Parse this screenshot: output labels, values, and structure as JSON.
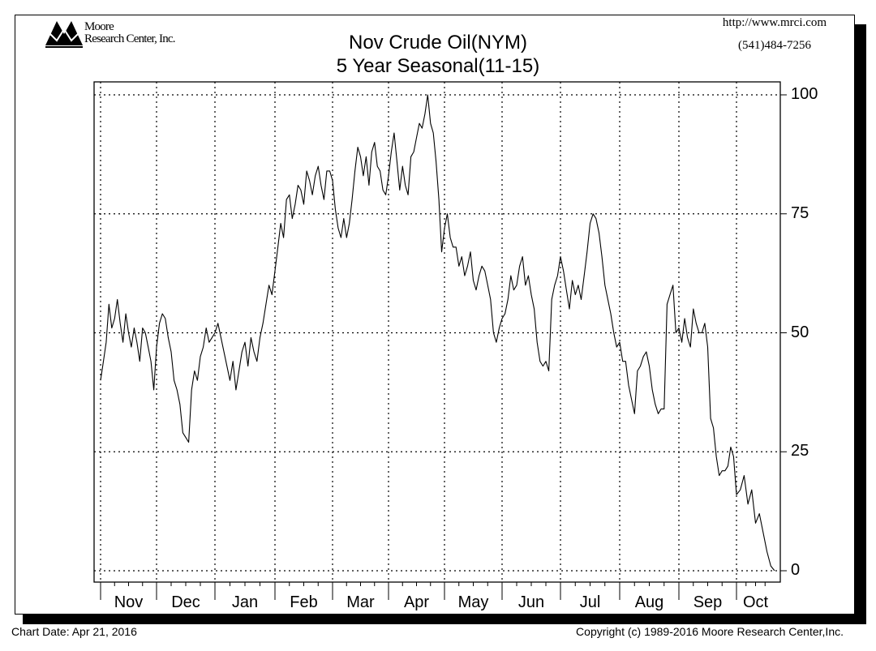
{
  "header": {
    "company_line1": "Moore",
    "company_line2": "Research Center, Inc.",
    "title_line1": "Nov Crude Oil(NYM)",
    "title_line2": "5 Year Seasonal(11-15)",
    "url": "http://www.mrci.com",
    "phone": "(541)484-7256"
  },
  "footer": {
    "chart_date": "Chart Date: Apr 21, 2016",
    "copyright": "Copyright (c) 1989-2016 Moore Research Center,Inc."
  },
  "y_ticks": [
    "100",
    "75",
    "50",
    "25",
    "0"
  ],
  "months": [
    "Nov",
    "Dec",
    "Jan",
    "Feb",
    "Mar",
    "Apr",
    "May",
    "Jun",
    "Jul",
    "Aug",
    "Sep",
    "Oct"
  ],
  "chart_data": {
    "type": "line",
    "title": "Nov Crude Oil(NYM) 5 Year Seasonal(11-15)",
    "xlabel": "",
    "ylabel": "",
    "ylim": [
      0,
      100
    ],
    "y_ticks": [
      0,
      25,
      50,
      75,
      100
    ],
    "grid": true,
    "legend": null,
    "categories": [
      "Nov",
      "Dec",
      "Jan",
      "Feb",
      "Mar",
      "Apr",
      "May",
      "Jun",
      "Jul",
      "Aug",
      "Sep",
      "Oct"
    ],
    "series": [
      {
        "name": "5 Year Seasonal Index",
        "x_month_pos": [
          0.0,
          0.05,
          0.1,
          0.15,
          0.2,
          0.25,
          0.3,
          0.35,
          0.4,
          0.45,
          0.5,
          0.55,
          0.6,
          0.65,
          0.7,
          0.75,
          0.8,
          0.85,
          0.9,
          0.95,
          1.0,
          1.05,
          1.1,
          1.15,
          1.2,
          1.25,
          1.3,
          1.35,
          1.4,
          1.45,
          1.5,
          1.55,
          1.6,
          1.65,
          1.7,
          1.75,
          1.8,
          1.85,
          1.9,
          1.95,
          2.0,
          2.05,
          2.1,
          2.15,
          2.2,
          2.25,
          2.3,
          2.35,
          2.4,
          2.45,
          2.5,
          2.55,
          2.6,
          2.65,
          2.7,
          2.75,
          2.8,
          2.85,
          2.9,
          2.95,
          3.0,
          3.05,
          3.1,
          3.15,
          3.2,
          3.25,
          3.3,
          3.35,
          3.4,
          3.45,
          3.5,
          3.55,
          3.6,
          3.65,
          3.7,
          3.75,
          3.8,
          3.85,
          3.9,
          3.95,
          4.0,
          4.05,
          4.1,
          4.15,
          4.2,
          4.25,
          4.3,
          4.35,
          4.4,
          4.45,
          4.5,
          4.55,
          4.6,
          4.65,
          4.7,
          4.75,
          4.8,
          4.85,
          4.9,
          4.95,
          5.0,
          5.05,
          5.1,
          5.15,
          5.2,
          5.25,
          5.3,
          5.35,
          5.4,
          5.45,
          5.5,
          5.55,
          5.6,
          5.65,
          5.7,
          5.75,
          5.8,
          5.85,
          5.9,
          5.95,
          6.0,
          6.05,
          6.1,
          6.15,
          6.2,
          6.25,
          6.3,
          6.35,
          6.4,
          6.45,
          6.5,
          6.55,
          6.6,
          6.65,
          6.7,
          6.75,
          6.8,
          6.85,
          6.9,
          6.95,
          7.0,
          7.05,
          7.1,
          7.15,
          7.2,
          7.25,
          7.3,
          7.35,
          7.4,
          7.45,
          7.5,
          7.55,
          7.6,
          7.65,
          7.7,
          7.75,
          7.8,
          7.85,
          7.9,
          7.95,
          8.0,
          8.05,
          8.1,
          8.15,
          8.2,
          8.25,
          8.3,
          8.35,
          8.4,
          8.45,
          8.5,
          8.55,
          8.6,
          8.65,
          8.7,
          8.75,
          8.8,
          8.85,
          8.9,
          8.95,
          9.0,
          9.05,
          9.1,
          9.15,
          9.2,
          9.25,
          9.3,
          9.35,
          9.4,
          9.45,
          9.5,
          9.55,
          9.6,
          9.65,
          9.7,
          9.75,
          9.8,
          9.85,
          9.9,
          9.95,
          10.0,
          10.05,
          10.1,
          10.15,
          10.2,
          10.25,
          10.3,
          10.35,
          10.4,
          10.45,
          10.5,
          10.55,
          10.6,
          10.65,
          10.7,
          10.75,
          10.8,
          10.85,
          10.9,
          10.95,
          11.0,
          11.1,
          11.2,
          11.3,
          11.4,
          11.5,
          11.6,
          11.7,
          11.8,
          11.9,
          12.0
        ],
        "values": [
          40,
          44,
          48,
          56,
          51,
          53,
          57,
          52,
          48,
          54,
          50,
          47,
          51,
          48,
          44,
          51,
          50,
          47,
          44,
          38,
          47,
          52,
          54,
          53,
          49,
          46,
          40,
          38,
          35,
          29,
          28,
          27,
          38,
          42,
          40,
          45,
          47,
          51,
          48,
          49,
          50,
          52,
          49,
          46,
          43,
          40,
          44,
          38,
          42,
          46,
          48,
          43,
          49,
          46,
          44,
          49,
          52,
          56,
          60,
          58,
          63,
          68,
          73,
          70,
          78,
          79,
          74,
          77,
          81,
          80,
          77,
          84,
          82,
          79,
          83,
          85,
          81,
          78,
          84,
          84,
          82,
          76,
          72,
          70,
          74,
          70,
          73,
          78,
          84,
          89,
          87,
          83,
          87,
          81,
          88,
          90,
          85,
          84,
          80,
          79,
          83,
          88,
          92,
          86,
          80,
          85,
          81,
          79,
          87,
          88,
          91,
          94,
          93,
          96,
          100,
          94,
          92,
          86,
          78,
          67,
          72,
          75,
          70,
          68,
          68,
          64,
          66,
          62,
          64,
          67,
          61,
          59,
          62,
          64,
          63,
          60,
          57,
          50,
          48,
          51,
          53,
          54,
          57,
          62,
          59,
          60,
          64,
          66,
          60,
          62,
          58,
          55,
          48,
          44,
          43,
          44,
          42,
          57,
          60,
          62,
          66,
          63,
          59,
          55,
          61,
          58,
          60,
          57,
          62,
          67,
          73,
          75,
          74,
          71,
          66,
          60,
          57,
          54,
          50,
          47,
          48,
          44,
          44,
          39,
          36,
          33,
          42,
          43,
          45,
          46,
          43,
          38,
          35,
          33,
          34,
          34,
          56,
          58,
          60,
          50,
          51,
          48,
          53,
          49,
          47,
          55,
          52,
          50,
          50,
          52,
          47,
          32,
          30,
          24,
          20,
          21,
          21,
          22,
          26,
          24,
          16,
          17,
          20,
          14,
          17,
          10,
          12,
          8,
          4,
          1,
          0
        ]
      }
    ]
  }
}
